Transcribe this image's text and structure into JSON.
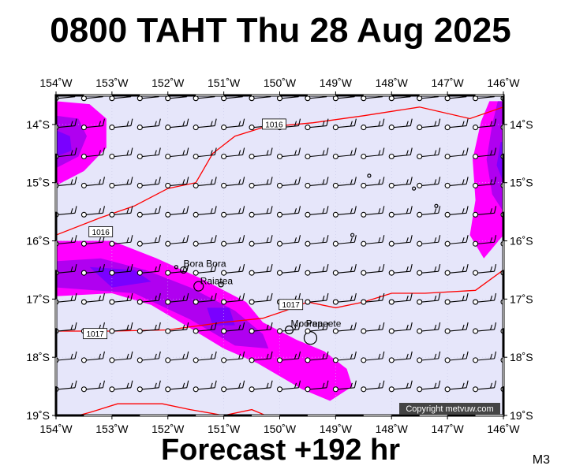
{
  "title": "0800 TAHT Thu 28 Aug 2025",
  "subtitle": "Forecast +192 hr",
  "model_label": "M3",
  "copyright": "Copyright metvuw.com",
  "colors": {
    "background_sea": "#e6e6fa",
    "rain_light": "#ff00ff",
    "rain_medium": "#b000f0",
    "rain_heavy": "#7a00ff",
    "isobar": "#ff0000",
    "wind_barb": "#000000"
  },
  "icons": {
    "wind_barb": "wind-barb-icon",
    "station": "station-circle-icon"
  },
  "map": {
    "lon_range": [
      -154,
      -146
    ],
    "lat_range": [
      -19,
      -13.5
    ],
    "lon_ticks": [
      {
        "value": -154,
        "label": "154˚W"
      },
      {
        "value": -153,
        "label": "153˚W"
      },
      {
        "value": -152,
        "label": "152˚W"
      },
      {
        "value": -151,
        "label": "151˚W"
      },
      {
        "value": -150,
        "label": "150˚W"
      },
      {
        "value": -149,
        "label": "149˚W"
      },
      {
        "value": -148,
        "label": "148˚W"
      },
      {
        "value": -147,
        "label": "147˚W"
      },
      {
        "value": -146,
        "label": "146˚W"
      }
    ],
    "lat_ticks": [
      {
        "value": -14,
        "label": "14˚S"
      },
      {
        "value": -15,
        "label": "15˚S"
      },
      {
        "value": -16,
        "label": "16˚S"
      },
      {
        "value": -17,
        "label": "17˚S"
      },
      {
        "value": -18,
        "label": "18˚S"
      },
      {
        "value": -19,
        "label": "19˚S"
      }
    ],
    "places": [
      {
        "name": "Bora Bora",
        "lon": -151.75,
        "lat": -16.5
      },
      {
        "name": "Raiatea",
        "lon": -151.45,
        "lat": -16.8
      },
      {
        "name": "Moorea",
        "lon": -149.83,
        "lat": -17.53
      },
      {
        "name": "Papeete",
        "lon": -149.56,
        "lat": -17.53
      }
    ],
    "isobars": [
      {
        "label": "1016",
        "label_lon": -150.1,
        "label_lat": -14.0,
        "points": [
          [
            -154,
            -15.9
          ],
          [
            -153.2,
            -15.6
          ],
          [
            -152.6,
            -15.4
          ],
          [
            -152.0,
            -15.1
          ],
          [
            -151.5,
            -15.0
          ],
          [
            -151.2,
            -14.5
          ],
          [
            -150.8,
            -14.2
          ],
          [
            -150.3,
            -14.05
          ],
          [
            -149.4,
            -13.97
          ],
          [
            -148.5,
            -13.85
          ],
          [
            -147.5,
            -13.7
          ],
          [
            -146.6,
            -13.9
          ],
          [
            -146.0,
            -13.7
          ]
        ]
      },
      {
        "label": "1016",
        "label_lon": -153.2,
        "label_lat": -15.85,
        "points": []
      },
      {
        "label": "1017",
        "label_lon": -153.3,
        "label_lat": -17.6,
        "points": [
          [
            -154,
            -17.55
          ],
          [
            -153.0,
            -17.55
          ],
          [
            -152.0,
            -17.53
          ],
          [
            -151.0,
            -17.4
          ],
          [
            -150.3,
            -17.33
          ],
          [
            -149.9,
            -17.2
          ],
          [
            -149.5,
            -17.05
          ],
          [
            -149.0,
            -17.15
          ],
          [
            -148.5,
            -17.05
          ],
          [
            -148.0,
            -16.9
          ],
          [
            -147.4,
            -16.9
          ],
          [
            -146.5,
            -16.85
          ],
          [
            -146.0,
            -16.5
          ]
        ]
      },
      {
        "label": "1017",
        "label_lon": -149.8,
        "label_lat": -17.1,
        "points": []
      },
      {
        "label": "",
        "label_lon": 0,
        "label_lat": 0,
        "points": [
          [
            -154,
            -19.1
          ],
          [
            -153.4,
            -18.95
          ],
          [
            -152.9,
            -18.8
          ],
          [
            -152.1,
            -18.8
          ],
          [
            -151.6,
            -18.9
          ],
          [
            -151.0,
            -19.0
          ],
          [
            -150.5,
            -18.9
          ],
          [
            -150.0,
            -19.1
          ]
        ]
      }
    ],
    "rain_regions": [
      {
        "level": "light",
        "points": [
          [
            -154,
            -13.6
          ],
          [
            -153.4,
            -13.65
          ],
          [
            -153.1,
            -13.9
          ],
          [
            -153.1,
            -14.4
          ],
          [
            -153.5,
            -14.8
          ],
          [
            -154,
            -15.05
          ]
        ]
      },
      {
        "level": "medium",
        "points": [
          [
            -154,
            -13.85
          ],
          [
            -153.6,
            -13.9
          ],
          [
            -153.45,
            -14.2
          ],
          [
            -153.6,
            -14.55
          ],
          [
            -154,
            -14.75
          ]
        ]
      },
      {
        "level": "heavy",
        "points": [
          [
            -154,
            -14.1
          ],
          [
            -153.75,
            -14.2
          ],
          [
            -153.72,
            -14.45
          ],
          [
            -154,
            -14.55
          ]
        ]
      },
      {
        "level": "light",
        "points": [
          [
            -154,
            -16.0
          ],
          [
            -153.0,
            -16.0
          ],
          [
            -152.2,
            -16.3
          ],
          [
            -151.4,
            -16.65
          ],
          [
            -150.6,
            -17.05
          ],
          [
            -150.3,
            -17.4
          ],
          [
            -149.7,
            -17.7
          ],
          [
            -149.2,
            -17.9
          ],
          [
            -148.8,
            -18.2
          ],
          [
            -148.7,
            -18.5
          ],
          [
            -149.1,
            -18.75
          ],
          [
            -149.6,
            -18.55
          ],
          [
            -150.4,
            -18.1
          ],
          [
            -151.0,
            -17.85
          ],
          [
            -151.6,
            -17.5
          ],
          [
            -152.3,
            -17.1
          ],
          [
            -153.0,
            -16.9
          ],
          [
            -154,
            -16.95
          ]
        ]
      },
      {
        "level": "medium",
        "points": [
          [
            -154,
            -16.35
          ],
          [
            -153.2,
            -16.3
          ],
          [
            -152.4,
            -16.5
          ],
          [
            -151.6,
            -16.8
          ],
          [
            -150.8,
            -17.2
          ],
          [
            -150.3,
            -17.6
          ],
          [
            -150.2,
            -17.85
          ],
          [
            -150.8,
            -17.8
          ],
          [
            -151.6,
            -17.35
          ],
          [
            -152.6,
            -16.9
          ],
          [
            -154,
            -16.8
          ]
        ]
      },
      {
        "level": "heavy",
        "points": [
          [
            -153.4,
            -16.45
          ],
          [
            -152.6,
            -16.5
          ],
          [
            -152.3,
            -16.7
          ],
          [
            -153.0,
            -16.8
          ]
        ]
      },
      {
        "level": "heavy",
        "points": [
          [
            -151.3,
            -17.15
          ],
          [
            -150.9,
            -17.15
          ],
          [
            -150.8,
            -17.45
          ],
          [
            -151.2,
            -17.45
          ]
        ]
      },
      {
        "level": "light",
        "points": [
          [
            -146.25,
            -13.6
          ],
          [
            -146.0,
            -13.6
          ],
          [
            -146.0,
            -15.9
          ],
          [
            -146.35,
            -16.3
          ],
          [
            -146.6,
            -15.9
          ],
          [
            -146.5,
            -15.3
          ],
          [
            -146.55,
            -14.6
          ],
          [
            -146.4,
            -13.95
          ]
        ]
      },
      {
        "level": "medium",
        "points": [
          [
            -146.1,
            -13.6
          ],
          [
            -146.0,
            -13.6
          ],
          [
            -146.0,
            -15.5
          ],
          [
            -146.2,
            -15.2
          ],
          [
            -146.3,
            -14.6
          ],
          [
            -146.2,
            -14.0
          ]
        ]
      },
      {
        "level": "heavy",
        "points": [
          [
            -146.05,
            -14.3
          ],
          [
            -146.0,
            -14.3
          ],
          [
            -146.0,
            -15.0
          ],
          [
            -146.12,
            -14.7
          ]
        ]
      }
    ],
    "islands": [
      {
        "lon": -151.72,
        "lat": -16.5,
        "r": 4
      },
      {
        "lon": -151.45,
        "lat": -16.78,
        "r": 6
      },
      {
        "lon": -151.05,
        "lat": -16.75,
        "r": 3
      },
      {
        "lon": -149.83,
        "lat": -17.53,
        "r": 5
      },
      {
        "lon": -149.45,
        "lat": -17.67,
        "r": 8
      },
      {
        "lon": -151.85,
        "lat": -16.45,
        "r": 2
      },
      {
        "lon": -148.4,
        "lat": -14.88,
        "r": 2
      },
      {
        "lon": -147.6,
        "lat": -15.1,
        "r": 2
      },
      {
        "lon": -147.2,
        "lat": -15.4,
        "r": 2
      },
      {
        "lon": -148.7,
        "lat": -15.9,
        "r": 2
      }
    ],
    "wind_grid": {
      "lon_start": -154,
      "lon_step": 0.5,
      "lon_count": 17,
      "lat_start": -13.55,
      "lat_step": -0.5,
      "lat_count": 11
    }
  }
}
